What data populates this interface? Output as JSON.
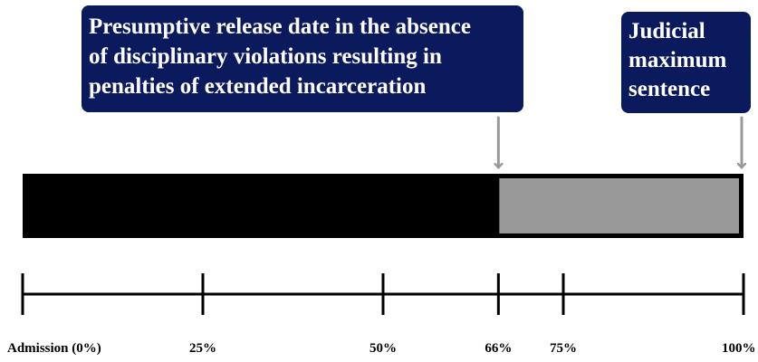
{
  "callouts": {
    "release": {
      "lines": [
        "Presumptive release date in the absence",
        "of disciplinary violations resulting in",
        "penalties of extended incarceration"
      ]
    },
    "maximum": {
      "lines": [
        "Judicial",
        "maximum",
        "sentence"
      ]
    }
  },
  "bar": {
    "served_fraction": 0.66,
    "served_color": "#000000",
    "remaining_color": "#999999",
    "arrow_color": "#999999"
  },
  "timeline": {
    "ticks": [
      {
        "percent": 0,
        "label": "Admission (0%)"
      },
      {
        "percent": 25,
        "label": "25%"
      },
      {
        "percent": 50,
        "label": "50%"
      },
      {
        "percent": 66,
        "label": "66%"
      },
      {
        "percent": 75,
        "label": "75%"
      },
      {
        "percent": 100,
        "label": "100%"
      }
    ]
  }
}
